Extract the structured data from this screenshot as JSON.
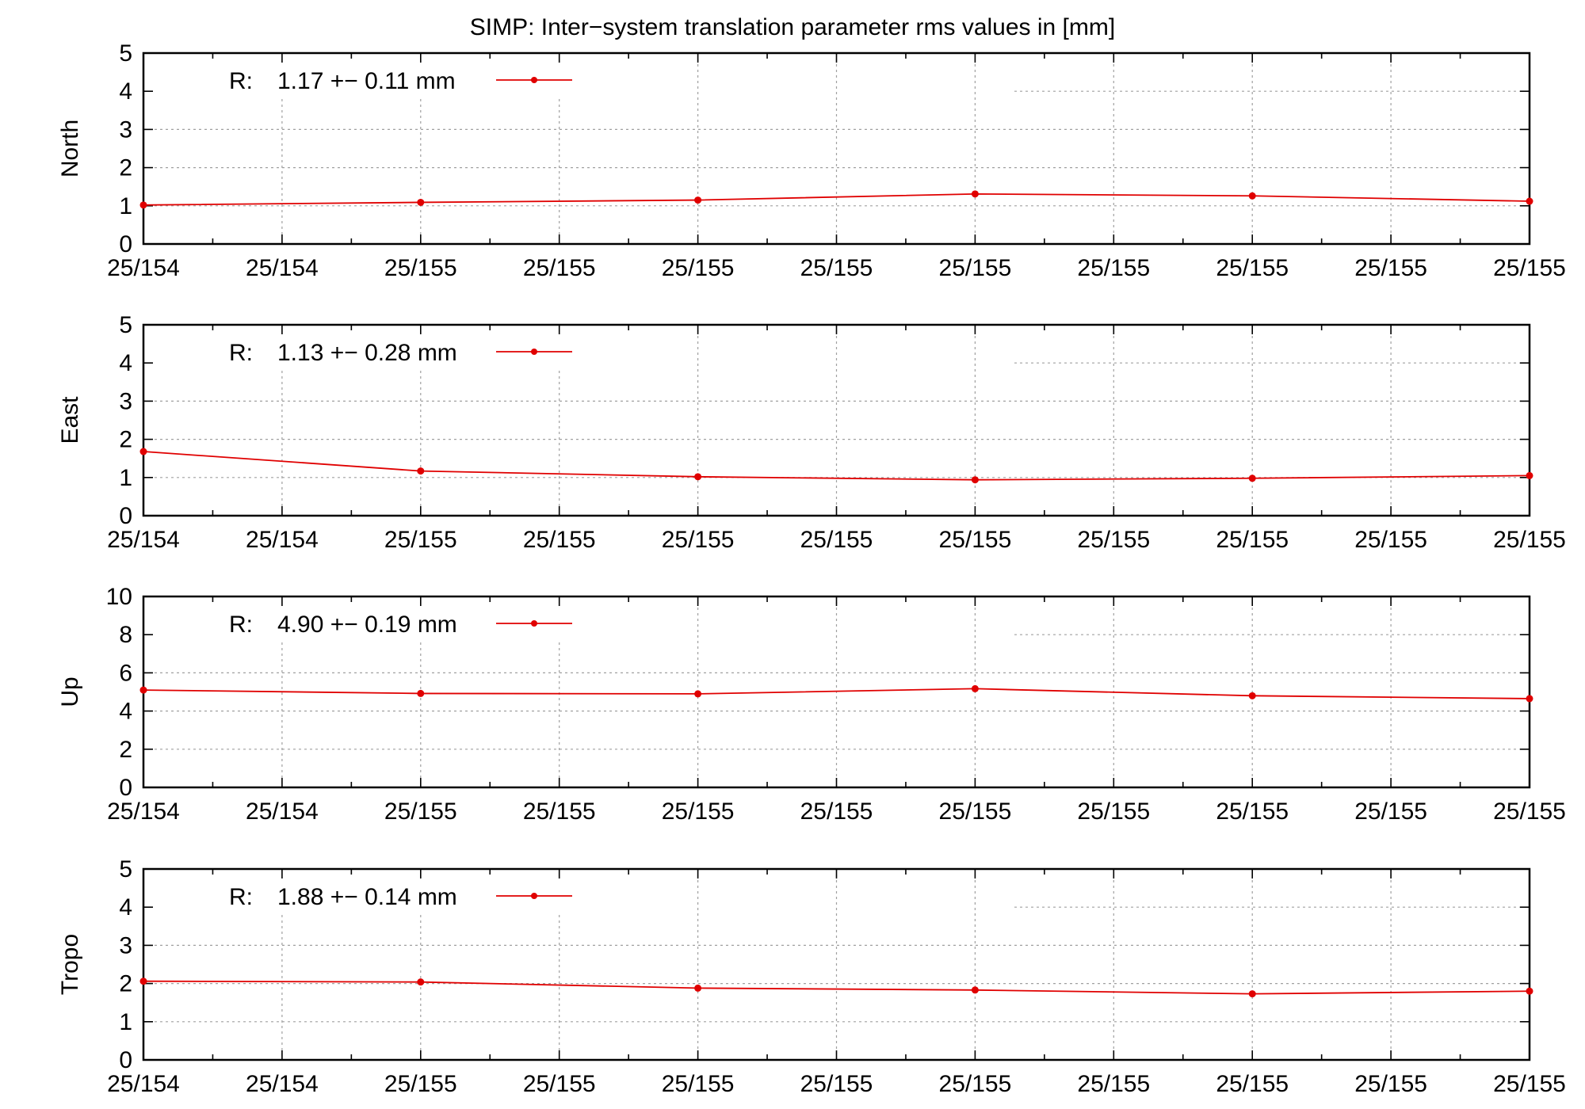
{
  "colors": {
    "series": "#e00000",
    "axes": "#000000",
    "grid": "#a0a0a0"
  },
  "chart_data": {
    "type": "line",
    "title": "SIMP: Inter−system translation parameter rms values in [mm]",
    "grid": true,
    "legend_placement": "top-left",
    "x_tick_labels": [
      "25/154",
      "25/154",
      "25/155",
      "25/155",
      "25/155",
      "25/155",
      "25/155",
      "25/155",
      "25/155",
      "25/155",
      "25/155"
    ],
    "panels": [
      {
        "ylabel": "North",
        "ylim": [
          0,
          5
        ],
        "yticks": [
          0,
          1,
          2,
          3,
          4,
          5
        ],
        "legend": {
          "prefix": "R:",
          "text": "1.17 +− 0.11 mm"
        },
        "series": [
          {
            "x": [
              0,
              2,
              4,
              6,
              8,
              10
            ],
            "values": [
              1.02,
              1.09,
              1.15,
              1.31,
              1.26,
              1.12
            ]
          }
        ]
      },
      {
        "ylabel": "East",
        "ylim": [
          0,
          5
        ],
        "yticks": [
          0,
          1,
          2,
          3,
          4,
          5
        ],
        "legend": {
          "prefix": "R:",
          "text": "1.13 +− 0.28 mm"
        },
        "series": [
          {
            "x": [
              0,
              2,
              4,
              6,
              8,
              10
            ],
            "values": [
              1.68,
              1.17,
              1.02,
              0.94,
              0.98,
              1.05
            ]
          }
        ]
      },
      {
        "ylabel": "Up",
        "ylim": [
          0,
          10
        ],
        "yticks": [
          0,
          2,
          4,
          6,
          8,
          10
        ],
        "legend": {
          "prefix": "R:",
          "text": "4.90 +− 0.19 mm"
        },
        "series": [
          {
            "x": [
              0,
              2,
              4,
              6,
              8,
              10
            ],
            "values": [
              5.1,
              4.92,
              4.9,
              5.17,
              4.8,
              4.65
            ]
          }
        ]
      },
      {
        "ylabel": "Tropo",
        "ylim": [
          0,
          5
        ],
        "yticks": [
          0,
          1,
          2,
          3,
          4,
          5
        ],
        "legend": {
          "prefix": "R:",
          "text": "1.88 +− 0.14 mm"
        },
        "series": [
          {
            "x": [
              0,
              2,
              4,
              6,
              8,
              10
            ],
            "values": [
              2.06,
              2.04,
              1.88,
              1.83,
              1.73,
              1.8
            ]
          }
        ]
      }
    ]
  }
}
